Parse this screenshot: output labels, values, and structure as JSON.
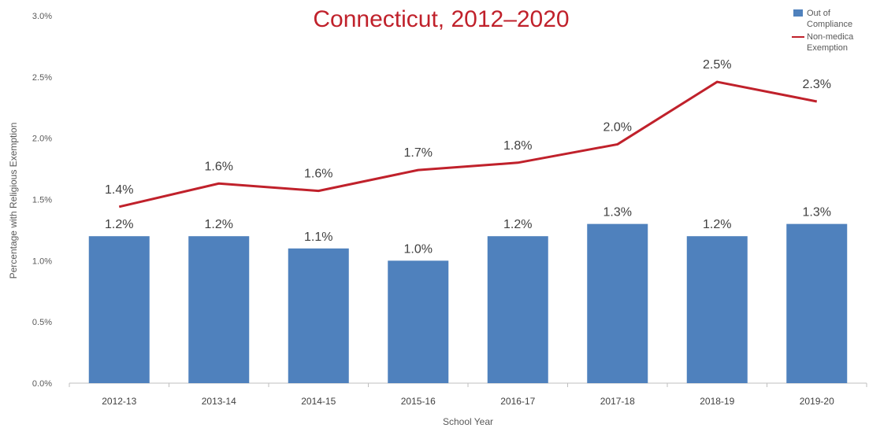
{
  "title_line": "Connecticut, 2012–2020",
  "chart_data": {
    "type": "bar",
    "categories": [
      "2012-13",
      "2013-14",
      "2014-15",
      "2015-16",
      "2016-17",
      "2017-18",
      "2018-19",
      "2019-20"
    ],
    "series": [
      {
        "name": "Out of Compliance",
        "type": "bar",
        "color": "#4f81bd",
        "values": [
          1.2,
          1.2,
          1.1,
          1.0,
          1.2,
          1.3,
          1.2,
          1.3
        ],
        "labels": [
          "1.2%",
          "1.2%",
          "1.1%",
          "1.0%",
          "1.2%",
          "1.3%",
          "1.2%",
          "1.3%"
        ]
      },
      {
        "name": "Non-medical Exemption",
        "type": "line",
        "color": "#c0212b",
        "values": [
          1.44,
          1.63,
          1.57,
          1.74,
          1.8,
          1.95,
          2.46,
          2.3
        ],
        "labels": [
          "1.4%",
          "1.6%",
          "1.6%",
          "1.7%",
          "1.8%",
          "2.0%",
          "2.5%",
          "2.3%"
        ]
      }
    ],
    "xlabel": "School Year",
    "ylabel": "Percentage with Religious Exemption",
    "ylim": [
      0,
      3.0
    ],
    "yticks": [
      0,
      0.5,
      1.0,
      1.5,
      2.0,
      2.5,
      3.0
    ],
    "ytick_labels": [
      "0.0%",
      "0.5%",
      "1.0%",
      "1.5%",
      "2.0%",
      "2.5%",
      "3.0%"
    ],
    "grid": false,
    "legend_position": "top-right"
  },
  "legend": {
    "bar_label": "Out of Compliance",
    "line_label": "Non-medica Exemption"
  }
}
